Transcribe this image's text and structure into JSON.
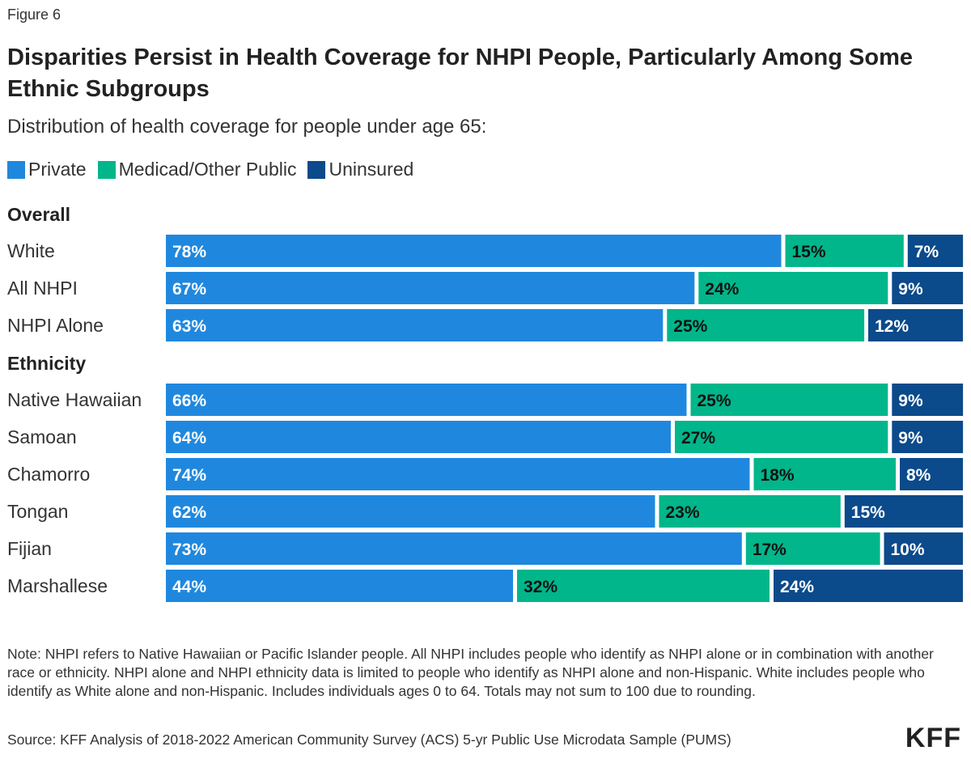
{
  "figure_label": "Figure 6",
  "title": "Disparities Persist in Health Coverage for NHPI People, Particularly Among Some Ethnic Subgroups",
  "subtitle": "Distribution of health coverage for people under age 65:",
  "legend": [
    {
      "label": "Private",
      "color": "#1f88de"
    },
    {
      "label": "Medicad/Other Public",
      "color": "#00b68a"
    },
    {
      "label": "Uninsured",
      "color": "#0b4a8b"
    }
  ],
  "chart_data": {
    "type": "bar",
    "orientation": "horizontal",
    "stacked": true,
    "groups": [
      {
        "heading": "Overall",
        "categories": [
          "White",
          "All NHPI",
          "NHPI Alone"
        ]
      },
      {
        "heading": "Ethnicity",
        "categories": [
          "Native Hawaiian",
          "Samoan",
          "Chamorro",
          "Tongan",
          "Fijian",
          "Marshallese"
        ]
      }
    ],
    "categories": [
      "White",
      "All NHPI",
      "NHPI Alone",
      "Native Hawaiian",
      "Samoan",
      "Chamorro",
      "Tongan",
      "Fijian",
      "Marshallese"
    ],
    "series": [
      {
        "name": "Private",
        "values": [
          78,
          67,
          63,
          66,
          64,
          74,
          62,
          73,
          44
        ]
      },
      {
        "name": "Medicad/Other Public",
        "values": [
          15,
          24,
          25,
          25,
          27,
          18,
          23,
          17,
          32
        ]
      },
      {
        "name": "Uninsured",
        "values": [
          7,
          9,
          12,
          9,
          9,
          8,
          15,
          10,
          24
        ]
      }
    ],
    "unit": "%",
    "xlim": [
      0,
      100
    ]
  },
  "note": "Note: NHPI refers to Native Hawaiian or Pacific Islander people. All NHPI includes people who identify as NHPI alone or in combination with another race or ethnicity. NHPI alone and NHPI ethnicity data is limited to people who identify as NHPI alone and non-Hispanic. White includes people who identify as White alone and non-Hispanic. Includes individuals ages 0 to 64. Totals may not sum to 100 due to rounding.",
  "source": "Source: KFF Analysis of 2018-2022 American Community Survey (ACS) 5-yr Public Use Microdata Sample (PUMS)",
  "logo": "KFF"
}
